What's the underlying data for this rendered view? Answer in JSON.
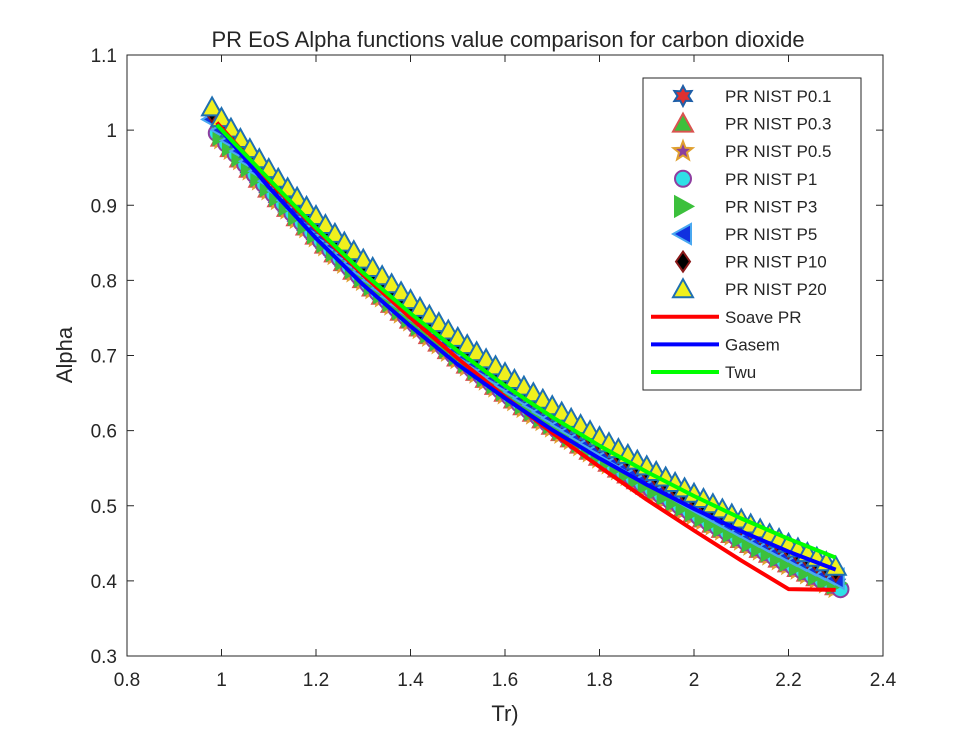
{
  "chart_data": {
    "type": "scatter",
    "title": "PR EoS Alpha functions value comparison for carbon dioxide",
    "xlabel": "Tr)",
    "ylabel": "Alpha",
    "xlim": [
      0.8,
      2.4
    ],
    "ylim": [
      0.3,
      1.1
    ],
    "xticks": [
      "0.8",
      "1",
      "1.2",
      "1.4",
      "1.6",
      "1.8",
      "2",
      "2.2",
      "2.4"
    ],
    "yticks": [
      "0.3",
      "0.4",
      "0.5",
      "0.6",
      "0.7",
      "0.8",
      "0.9",
      "1",
      "1.1"
    ],
    "grid": false,
    "legend_position": "top-right",
    "x_range": [
      0.98,
      2.31
    ],
    "kappa": 0.7071,
    "series": [
      {
        "name": "PR NIST P0.1",
        "kind": "marker",
        "marker": "hexagram",
        "stroke": "#1f5fa8",
        "fill": "#e03030",
        "x_start": 1.06,
        "y_offset": -0.008,
        "x_step": 0.02
      },
      {
        "name": "PR NIST P0.3",
        "kind": "marker",
        "marker": "triangle-up",
        "stroke": "#d9534f",
        "fill": "#3cc03c",
        "x_start": 1.0,
        "y_offset": -0.01,
        "x_step": 0.02
      },
      {
        "name": "PR NIST P0.5",
        "kind": "marker",
        "marker": "pentagram",
        "stroke": "#e0a030",
        "fill": "#8a3f9e",
        "x_start": 1.0,
        "y_offset": -0.012,
        "x_step": 0.02
      },
      {
        "name": "PR NIST P1",
        "kind": "marker",
        "marker": "circle",
        "stroke": "#8e3ea0",
        "fill": "#2fe0e6",
        "x_start": 0.99,
        "y_offset": -0.011,
        "x_step": 0.02
      },
      {
        "name": "PR NIST P3",
        "kind": "marker",
        "marker": "triangle-right",
        "stroke": "#3cc03c",
        "fill": "#3cc03c",
        "x_start": 1.0,
        "y_offset": -0.006,
        "x_step": 0.02
      },
      {
        "name": "PR NIST P5",
        "kind": "marker",
        "marker": "triangle-left",
        "stroke": "#4aa8f0",
        "fill": "#1030e0",
        "x_start": 0.98,
        "y_offset": 0.0,
        "x_step": 0.02
      },
      {
        "name": "PR NIST P10",
        "kind": "marker",
        "marker": "diamond",
        "stroke": "#8a1a1a",
        "fill": "#000000",
        "x_start": 0.98,
        "y_offset": 0.01,
        "x_step": 0.02
      },
      {
        "name": "PR NIST P20",
        "kind": "marker",
        "marker": "triangle-up",
        "stroke": "#1f6fb2",
        "fill": "#f0f01e",
        "x_start": 0.98,
        "y_offset": 0.016,
        "x_step": 0.02
      },
      {
        "name": "Soave PR",
        "kind": "line",
        "color": "#ff0000",
        "x": [
          0.99,
          1.1,
          1.2,
          1.3,
          1.4,
          1.5,
          1.6,
          1.7,
          1.8,
          1.9,
          2.0,
          2.1,
          2.2,
          2.3
        ],
        "y": [
          1.01,
          0.933,
          0.868,
          0.807,
          0.75,
          0.696,
          0.645,
          0.597,
          0.552,
          0.508,
          0.467,
          0.427,
          0.389,
          0.388
        ]
      },
      {
        "name": "Gasem",
        "kind": "line",
        "color": "#0000ff",
        "x": [
          0.99,
          1.1,
          1.2,
          1.3,
          1.4,
          1.5,
          1.6,
          1.7,
          1.8,
          1.9,
          2.0,
          2.1,
          2.2,
          2.3
        ],
        "y": [
          1.007,
          0.924,
          0.856,
          0.794,
          0.739,
          0.688,
          0.643,
          0.601,
          0.563,
          0.528,
          0.496,
          0.466,
          0.439,
          0.415
        ]
      },
      {
        "name": "Twu",
        "kind": "line",
        "color": "#00ff00",
        "x": [
          0.99,
          1.1,
          1.2,
          1.3,
          1.4,
          1.5,
          1.6,
          1.7,
          1.8,
          1.9,
          2.0,
          2.1,
          2.2,
          2.3
        ],
        "y": [
          1.007,
          0.935,
          0.87,
          0.81,
          0.756,
          0.706,
          0.66,
          0.618,
          0.58,
          0.545,
          0.513,
          0.483,
          0.456,
          0.431
        ]
      }
    ]
  }
}
